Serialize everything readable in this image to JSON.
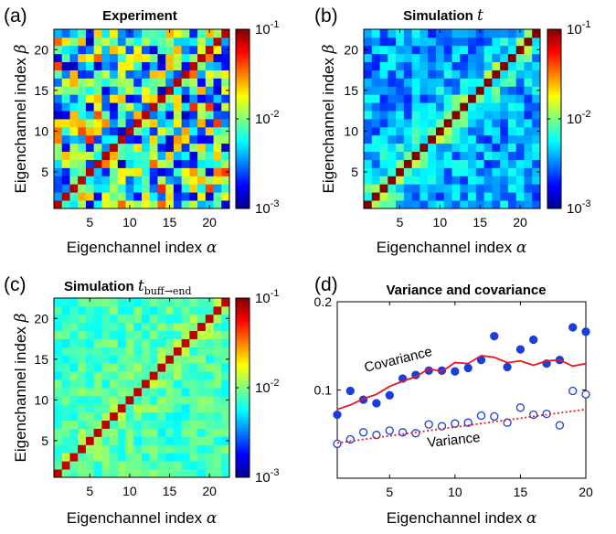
{
  "chart_data": [
    {
      "panel_label": "(a)",
      "type": "heatmap",
      "title": "Experiment",
      "xlabel": "Eigenchannel index",
      "xlabel_symbol": "α",
      "ylabel": "Eigenchannel index",
      "ylabel_symbol": "β",
      "x_ticks": [
        "5",
        "10",
        "15",
        "20"
      ],
      "y_ticks": [
        "5",
        "10",
        "15",
        "20"
      ],
      "size": 22,
      "seed": 11,
      "offdiag_mean_log": -2.15,
      "offdiag_spread": 0.55,
      "near_diag_boost": 0.0,
      "diag_log": -1.1,
      "colorbar": {
        "scale": "log",
        "range": [
          0.001,
          0.1
        ],
        "tick_bases": [
          "10",
          "10",
          "10"
        ],
        "tick_exps": [
          "-1",
          "-2",
          "-3"
        ]
      }
    },
    {
      "panel_label": "(b)",
      "type": "heatmap",
      "title": "Simulation",
      "title_symbol": "t",
      "xlabel": "Eigenchannel index",
      "xlabel_symbol": "α",
      "ylabel": "Eigenchannel index",
      "ylabel_symbol": "β",
      "x_ticks": [
        "5",
        "10",
        "15",
        "20"
      ],
      "y_ticks": [
        "5",
        "10",
        "15",
        "20"
      ],
      "size": 22,
      "seed": 29,
      "offdiag_mean_log": -2.45,
      "offdiag_spread": 0.25,
      "near_diag_boost": 0.35,
      "diag_log": -1.0,
      "colorbar": {
        "scale": "log",
        "range": [
          0.001,
          0.1
        ],
        "tick_bases": [
          "10",
          "10",
          "10"
        ],
        "tick_exps": [
          "-1",
          "-2",
          "-3"
        ]
      }
    },
    {
      "panel_label": "(c)",
      "type": "heatmap",
      "title": "Simulation",
      "title_symbol": "t",
      "title_subscript": "buff→end",
      "xlabel": "Eigenchannel index",
      "xlabel_symbol": "α",
      "ylabel": "Eigenchannel index",
      "ylabel_symbol": "β",
      "x_ticks": [
        "5",
        "10",
        "15",
        "20"
      ],
      "y_ticks": [
        "5",
        "10",
        "15",
        "20"
      ],
      "size": 22,
      "seed": 53,
      "offdiag_mean_log": -2.12,
      "offdiag_spread": 0.16,
      "near_diag_boost": 0.12,
      "diag_log": -1.12,
      "colorbar": {
        "scale": "log",
        "range": [
          0.001,
          0.1
        ],
        "tick_bases": [
          "10",
          "10",
          "10"
        ],
        "tick_exps": [
          "-1",
          "-2",
          "-3"
        ]
      }
    },
    {
      "panel_label": "(d)",
      "type": "scatter",
      "title": "Variance and covariance",
      "xlabel": "Eigenchannel index",
      "xlabel_symbol": "α",
      "xlim": [
        1,
        20
      ],
      "ylim": [
        0,
        0.2
      ],
      "x_ticks": [
        5,
        10,
        15,
        20
      ],
      "y_ticks": [
        0.1,
        0.2
      ],
      "y_tick_labels": [
        "0.1",
        "0.2"
      ],
      "annotations": [
        "Covariance",
        "Variance"
      ],
      "series": [
        {
          "name": "Covariance",
          "kind": "filled-markers",
          "color": "#1a3ed8",
          "x": [
            1,
            2,
            3,
            4,
            5,
            6,
            7,
            8,
            9,
            10,
            11,
            12,
            13,
            14,
            15,
            16,
            17,
            18,
            19,
            20
          ],
          "y": [
            0.072,
            0.099,
            0.089,
            0.085,
            0.094,
            0.113,
            0.117,
            0.122,
            0.122,
            0.121,
            0.125,
            0.134,
            0.161,
            0.126,
            0.146,
            0.157,
            0.13,
            0.134,
            0.171,
            0.166
          ]
        },
        {
          "name": "Covariance",
          "kind": "line",
          "color": "#e8191d",
          "x": [
            1,
            2,
            3,
            4,
            5,
            6,
            7,
            8,
            9,
            10,
            11,
            12,
            13,
            14,
            15,
            16,
            17,
            18,
            19,
            20
          ],
          "y": [
            0.078,
            0.083,
            0.09,
            0.095,
            0.104,
            0.11,
            0.115,
            0.124,
            0.121,
            0.131,
            0.13,
            0.139,
            0.137,
            0.131,
            0.133,
            0.128,
            0.133,
            0.134,
            0.127,
            0.13
          ]
        },
        {
          "name": "Variance",
          "kind": "open-markers",
          "color": "#1a3ed8",
          "x": [
            1,
            2,
            3,
            4,
            5,
            6,
            7,
            8,
            9,
            10,
            11,
            12,
            13,
            14,
            15,
            16,
            17,
            18,
            19,
            20
          ],
          "y": [
            0.039,
            0.044,
            0.052,
            0.049,
            0.054,
            0.052,
            0.051,
            0.061,
            0.059,
            0.062,
            0.063,
            0.071,
            0.07,
            0.063,
            0.08,
            0.072,
            0.073,
            0.06,
            0.099,
            0.095
          ]
        },
        {
          "name": "Variance",
          "kind": "dotted-line",
          "color": "#e8191d",
          "x": [
            1,
            2,
            3,
            4,
            5,
            6,
            7,
            8,
            9,
            10,
            11,
            12,
            13,
            14,
            15,
            16,
            17,
            18,
            19,
            20
          ],
          "y": [
            0.04,
            0.042,
            0.044,
            0.046,
            0.048,
            0.05,
            0.052,
            0.054,
            0.056,
            0.058,
            0.06,
            0.062,
            0.064,
            0.066,
            0.068,
            0.07,
            0.072,
            0.074,
            0.076,
            0.078
          ]
        }
      ]
    }
  ]
}
